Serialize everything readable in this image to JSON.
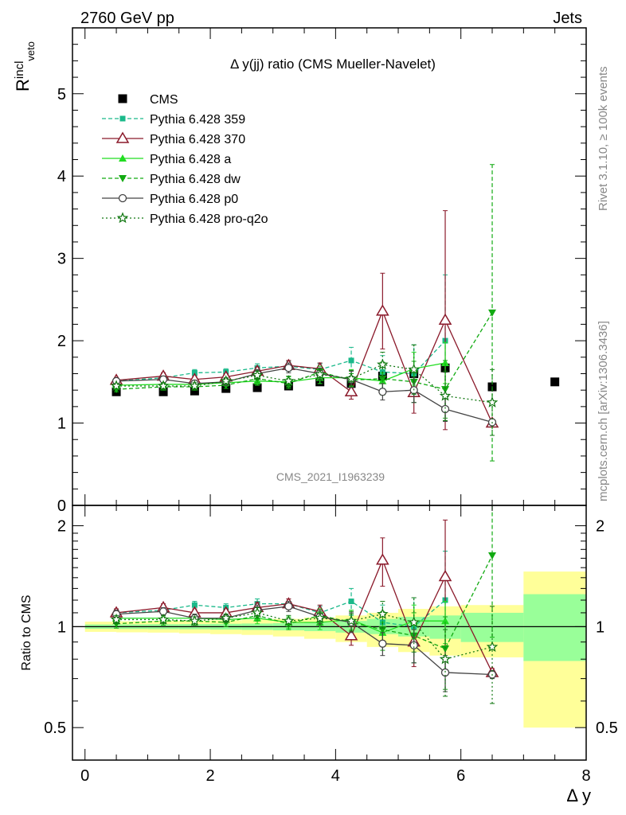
{
  "header": {
    "beam": "2760 GeV pp",
    "process": "Jets"
  },
  "side_labels": {
    "rivet": "Rivet 3.1.10, ≥ 100k events",
    "mcplots": "mcplots.cern.ch [arXiv:1306.3436]"
  },
  "analysis_id": "CMS_2021_I1963239",
  "colors": {
    "cms": "#000000",
    "p359": "#1ab98a",
    "p370": "#8b1a2b",
    "pa": "#22dd22",
    "pdw": "#11aa11",
    "pp0": "#444444",
    "pq2o": "#117711",
    "band_yellow": "#ffff99",
    "band_green": "#99ff99"
  },
  "chart_data": [
    {
      "type": "scatter",
      "title": "Δ y(jj) ratio (CMS Mueller-Navelet)",
      "ylabel_main": "R",
      "ylabel_sup": "incl",
      "ylabel_sub": "veto",
      "xlim": [
        -0.2,
        8.0
      ],
      "ylim": [
        0,
        5.8
      ],
      "yticks": [
        0,
        1,
        2,
        3,
        4,
        5
      ],
      "ytick_labels": [
        "0",
        "1",
        "2",
        "3",
        "4",
        "5"
      ],
      "legend_position": "top-left",
      "series": [
        {
          "key": "cms",
          "name": "CMS",
          "marker": "square",
          "line": "none",
          "x": [
            0.5,
            1.25,
            1.75,
            2.25,
            2.75,
            3.25,
            3.75,
            4.25,
            4.75,
            5.25,
            5.75,
            6.5,
            7.5
          ],
          "y": [
            1.38,
            1.38,
            1.39,
            1.42,
            1.43,
            1.45,
            1.5,
            1.48,
            1.57,
            1.6,
            1.67,
            1.44,
            1.5
          ],
          "err": [
            0.02,
            0.02,
            0.02,
            0.02,
            0.02,
            0.02,
            0.02,
            0.03,
            0.03,
            0.04,
            0.05,
            0.04,
            0.04
          ]
        },
        {
          "key": "p359",
          "name": "Pythia 6.428 359",
          "marker": "small-square",
          "line": "dashed",
          "x": [
            0.5,
            1.25,
            1.75,
            2.25,
            2.75,
            3.25,
            3.75,
            4.25,
            4.75,
            5.25,
            5.75
          ],
          "y": [
            1.51,
            1.55,
            1.61,
            1.62,
            1.67,
            1.69,
            1.65,
            1.76,
            1.62,
            1.6,
            2.0
          ],
          "err": [
            0.03,
            0.04,
            0.04,
            0.04,
            0.05,
            0.06,
            0.07,
            0.16,
            0.2,
            0.35,
            0.8
          ]
        },
        {
          "key": "p370",
          "name": "Pythia 6.428 370",
          "marker": "triangle-open",
          "line": "solid",
          "x": [
            0.5,
            1.25,
            1.75,
            2.25,
            2.75,
            3.25,
            3.75,
            4.25,
            4.75,
            5.25,
            5.75,
            6.5
          ],
          "y": [
            1.52,
            1.57,
            1.53,
            1.56,
            1.63,
            1.7,
            1.66,
            1.38,
            2.36,
            1.37,
            2.25,
            1.0
          ],
          "err": [
            0.03,
            0.04,
            0.04,
            0.04,
            0.05,
            0.06,
            0.07,
            0.09,
            0.46,
            0.25,
            1.33,
            0.03
          ]
        },
        {
          "key": "pa",
          "name": "Pythia 6.428 a",
          "marker": "triangle",
          "line": "solid",
          "x": [
            0.5,
            1.25,
            1.75,
            2.25,
            2.75,
            3.25,
            3.75,
            4.25,
            4.75,
            5.25,
            5.75
          ],
          "y": [
            1.46,
            1.47,
            1.47,
            1.49,
            1.51,
            1.5,
            1.55,
            1.55,
            1.51,
            1.66,
            1.73
          ],
          "err": [
            0.03,
            0.04,
            0.04,
            0.04,
            0.05,
            0.06,
            0.07,
            0.1,
            0.1,
            0.2,
            0.25
          ]
        },
        {
          "key": "pdw",
          "name": "Pythia 6.428 dw",
          "marker": "triangle-down",
          "line": "dashed",
          "x": [
            0.5,
            1.25,
            1.75,
            2.25,
            2.75,
            3.25,
            3.75,
            4.25,
            4.75,
            5.25,
            5.75,
            6.5
          ],
          "y": [
            1.41,
            1.44,
            1.44,
            1.46,
            1.54,
            1.48,
            1.62,
            1.52,
            1.54,
            1.5,
            1.41,
            2.34
          ],
          "err": [
            0.03,
            0.04,
            0.04,
            0.04,
            0.05,
            0.06,
            0.07,
            0.08,
            0.2,
            0.25,
            0.35,
            1.8
          ]
        },
        {
          "key": "pp0",
          "name": "Pythia 6.428 p0",
          "marker": "circle-open",
          "line": "solid",
          "x": [
            0.5,
            1.25,
            1.75,
            2.25,
            2.75,
            3.25,
            3.75,
            4.25,
            4.75,
            5.25,
            5.75,
            6.5
          ],
          "y": [
            1.51,
            1.53,
            1.48,
            1.5,
            1.6,
            1.67,
            1.6,
            1.53,
            1.38,
            1.4,
            1.17,
            1.01
          ],
          "err": [
            0.03,
            0.04,
            0.04,
            0.04,
            0.05,
            0.06,
            0.07,
            0.1,
            0.1,
            0.15,
            0.15,
            0.03
          ]
        },
        {
          "key": "pq2o",
          "name": "Pythia 6.428 pro-q2o",
          "marker": "star",
          "line": "dotted",
          "x": [
            0.5,
            1.25,
            1.75,
            2.25,
            2.75,
            3.25,
            3.75,
            4.25,
            4.75,
            5.25,
            5.75,
            6.5
          ],
          "y": [
            1.45,
            1.45,
            1.45,
            1.51,
            1.58,
            1.51,
            1.59,
            1.54,
            1.71,
            1.65,
            1.33,
            1.25
          ],
          "err": [
            0.03,
            0.04,
            0.04,
            0.04,
            0.05,
            0.06,
            0.07,
            0.1,
            0.15,
            0.3,
            0.3,
            0.4
          ]
        }
      ]
    },
    {
      "type": "scatter",
      "ylabel": "Ratio to CMS",
      "xlabel": "Δ y",
      "xlim": [
        -0.2,
        8.0
      ],
      "ylim": [
        0.4,
        2.3
      ],
      "xticks": [
        0,
        2,
        4,
        6,
        8
      ],
      "xtick_labels": [
        "0",
        "2",
        "4",
        "6",
        "8"
      ],
      "yticks": [
        0.5,
        1,
        2
      ],
      "ytick_labels": [
        "0.5",
        "1",
        "2"
      ],
      "yscale": "log",
      "bands": [
        {
          "x0": 0.0,
          "x1": 0.5,
          "y_lo": 0.965,
          "y_hi": 1.035,
          "g_lo": 0.985,
          "g_hi": 1.015
        },
        {
          "x0": 0.5,
          "x1": 1.0,
          "y_lo": 0.962,
          "y_hi": 1.038,
          "g_lo": 0.984,
          "g_hi": 1.016
        },
        {
          "x0": 1.0,
          "x1": 1.5,
          "y_lo": 0.96,
          "y_hi": 1.04,
          "g_lo": 0.983,
          "g_hi": 1.017
        },
        {
          "x0": 1.5,
          "x1": 2.0,
          "y_lo": 0.955,
          "y_hi": 1.042,
          "g_lo": 0.982,
          "g_hi": 1.018
        },
        {
          "x0": 2.0,
          "x1": 2.5,
          "y_lo": 0.95,
          "y_hi": 1.045,
          "g_lo": 0.98,
          "g_hi": 1.02
        },
        {
          "x0": 2.5,
          "x1": 3.0,
          "y_lo": 0.945,
          "y_hi": 1.05,
          "g_lo": 0.978,
          "g_hi": 1.022
        },
        {
          "x0": 3.0,
          "x1": 3.5,
          "y_lo": 0.935,
          "y_hi": 1.055,
          "g_lo": 0.975,
          "g_hi": 1.025
        },
        {
          "x0": 3.5,
          "x1": 4.0,
          "y_lo": 0.92,
          "y_hi": 1.065,
          "g_lo": 0.97,
          "g_hi": 1.03
        },
        {
          "x0": 4.0,
          "x1": 4.5,
          "y_lo": 0.9,
          "y_hi": 1.08,
          "g_lo": 0.96,
          "g_hi": 1.04
        },
        {
          "x0": 4.5,
          "x1": 5.0,
          "y_lo": 0.87,
          "y_hi": 1.1,
          "g_lo": 0.95,
          "g_hi": 1.055
        },
        {
          "x0": 5.0,
          "x1": 5.5,
          "y_lo": 0.84,
          "y_hi": 1.13,
          "g_lo": 0.935,
          "g_hi": 1.07
        },
        {
          "x0": 5.5,
          "x1": 6.0,
          "y_lo": 0.82,
          "y_hi": 1.15,
          "g_lo": 0.92,
          "g_hi": 1.08
        },
        {
          "x0": 6.0,
          "x1": 7.0,
          "y_lo": 0.81,
          "y_hi": 1.16,
          "g_lo": 0.9,
          "g_hi": 1.1
        },
        {
          "x0": 7.0,
          "x1": 8.0,
          "y_lo": 0.5,
          "y_hi": 1.46,
          "g_lo": 0.79,
          "g_hi": 1.25
        }
      ],
      "series": [
        {
          "key": "p359",
          "x": [
            0.5,
            1.25,
            1.75,
            2.25,
            2.75,
            3.25,
            3.75,
            4.25,
            4.75,
            5.25,
            5.75
          ],
          "y": [
            1.1,
            1.12,
            1.16,
            1.14,
            1.17,
            1.17,
            1.1,
            1.19,
            1.03,
            1.0,
            1.2
          ],
          "err": [
            0.03,
            0.03,
            0.03,
            0.03,
            0.04,
            0.04,
            0.05,
            0.11,
            0.13,
            0.22,
            0.48
          ]
        },
        {
          "key": "p370",
          "x": [
            0.5,
            1.25,
            1.75,
            2.25,
            2.75,
            3.25,
            3.75,
            4.25,
            4.75,
            5.25,
            5.75,
            6.5
          ],
          "y": [
            1.1,
            1.14,
            1.1,
            1.1,
            1.14,
            1.17,
            1.11,
            0.94,
            1.58,
            0.9,
            1.41,
            0.73
          ],
          "err": [
            0.03,
            0.03,
            0.03,
            0.03,
            0.04,
            0.04,
            0.05,
            0.06,
            0.26,
            0.14,
            0.67,
            0.02
          ]
        },
        {
          "key": "pa",
          "x": [
            0.5,
            1.25,
            1.75,
            2.25,
            2.75,
            3.25,
            3.75,
            4.25,
            4.75,
            5.25,
            5.75
          ],
          "y": [
            1.06,
            1.06,
            1.06,
            1.05,
            1.06,
            1.03,
            1.03,
            1.05,
            0.96,
            1.04,
            1.04
          ],
          "err": [
            0.03,
            0.03,
            0.03,
            0.03,
            0.04,
            0.04,
            0.05,
            0.07,
            0.07,
            0.12,
            0.15
          ]
        },
        {
          "key": "pdw",
          "x": [
            0.5,
            1.25,
            1.75,
            2.25,
            2.75,
            3.25,
            3.75,
            4.25,
            4.75,
            5.25,
            5.75,
            6.5
          ],
          "y": [
            1.02,
            1.04,
            1.04,
            1.03,
            1.08,
            1.02,
            1.08,
            1.03,
            0.98,
            0.94,
            0.86,
            1.63
          ],
          "err": [
            0.03,
            0.03,
            0.03,
            0.03,
            0.04,
            0.04,
            0.05,
            0.06,
            0.13,
            0.16,
            0.21,
            0.7
          ]
        },
        {
          "key": "pp0",
          "x": [
            0.5,
            1.25,
            1.75,
            2.25,
            2.75,
            3.25,
            3.75,
            4.25,
            4.75,
            5.25,
            5.75,
            6.5
          ],
          "y": [
            1.09,
            1.11,
            1.06,
            1.06,
            1.12,
            1.15,
            1.07,
            1.03,
            0.89,
            0.88,
            0.73,
            0.72
          ],
          "err": [
            0.03,
            0.03,
            0.03,
            0.03,
            0.04,
            0.04,
            0.05,
            0.07,
            0.07,
            0.1,
            0.09,
            0.02
          ]
        },
        {
          "key": "pq2o",
          "x": [
            0.5,
            1.25,
            1.75,
            2.25,
            2.75,
            3.25,
            3.75,
            4.25,
            4.75,
            5.25,
            5.75,
            6.5
          ],
          "y": [
            1.05,
            1.05,
            1.04,
            1.06,
            1.1,
            1.04,
            1.06,
            1.04,
            1.09,
            1.03,
            0.8,
            0.87
          ],
          "err": [
            0.03,
            0.03,
            0.03,
            0.03,
            0.04,
            0.04,
            0.05,
            0.07,
            0.1,
            0.19,
            0.18,
            0.28
          ]
        }
      ]
    }
  ]
}
